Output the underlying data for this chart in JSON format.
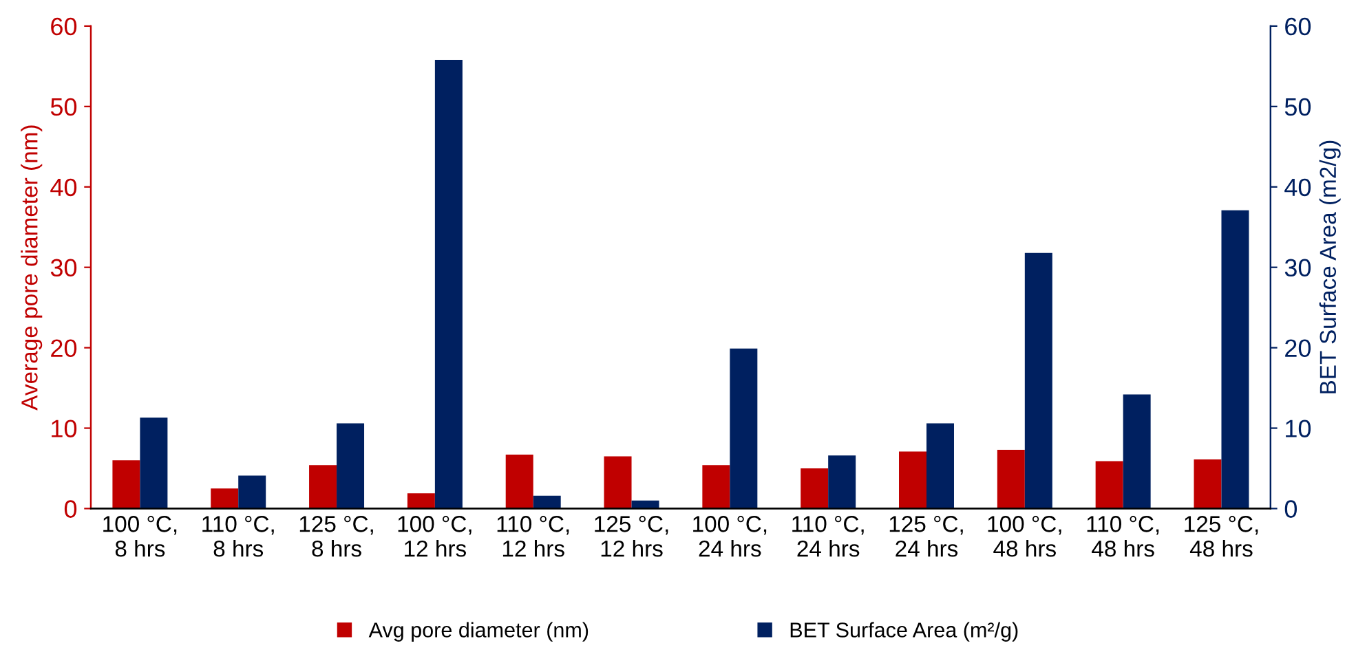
{
  "chart_data": {
    "type": "bar",
    "categories": [
      "100 °C,\n8 hrs",
      "110 °C,\n8 hrs",
      "125 °C,\n8 hrs",
      "100 °C,\n12 hrs",
      "110 °C,\n12 hrs",
      "125 °C,\n12 hrs",
      "100 °C,\n24 hrs",
      "110 °C,\n24 hrs",
      "125 °C,\n24 hrs",
      "100 °C,\n48 hrs",
      "110 °C,\n48 hrs",
      "125 °C,\n48 hrs"
    ],
    "series": [
      {
        "name": "Avg pore diameter (nm)",
        "color": "#c00000",
        "values": [
          6.0,
          2.5,
          5.4,
          1.9,
          6.7,
          6.5,
          5.4,
          5.0,
          7.1,
          7.3,
          5.9,
          6.1
        ]
      },
      {
        "name": "BET Surface Area (m²/g)",
        "color": "#002060",
        "axis": "y2",
        "values": [
          11.3,
          4.1,
          10.6,
          55.8,
          1.6,
          1.0,
          19.9,
          6.6,
          10.6,
          31.8,
          14.2,
          37.1
        ]
      }
    ],
    "ylabel": "Average pore diameter (nm)",
    "y2label": "BET Surface Area (m2/g)",
    "ylim": [
      0,
      60
    ],
    "yticks": [
      0,
      10,
      20,
      30,
      40,
      50,
      60
    ],
    "y2lim": [
      0,
      60
    ],
    "y2ticks": [
      0,
      10,
      20,
      30,
      40,
      50,
      60
    ],
    "grid": false,
    "legend": "bottom"
  }
}
